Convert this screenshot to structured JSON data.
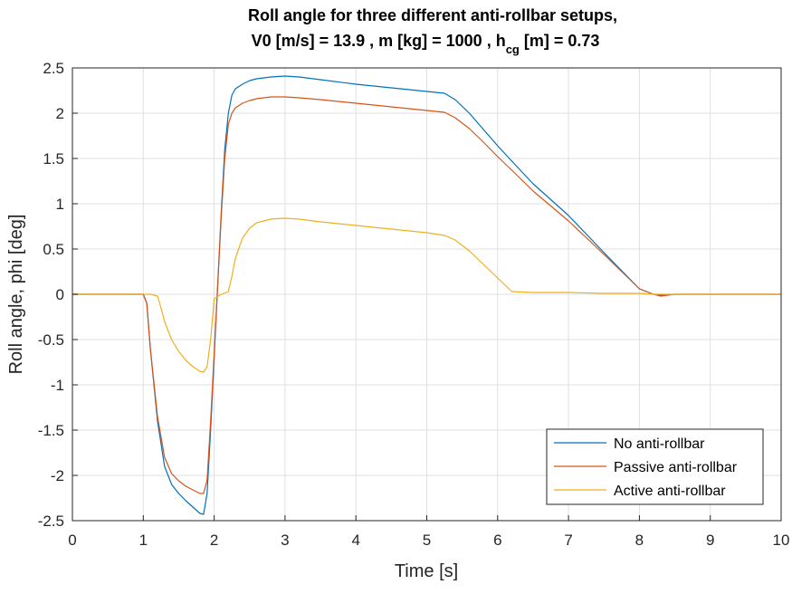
{
  "chart_data": {
    "type": "line",
    "title_line1": "Roll angle for three different anti-rollbar setups,",
    "title_line2_prefix": "V0 [m/s] = 13.9 , m [kg] = 1000 , h",
    "title_line2_subscript": "cg",
    "title_line2_suffix": " [m] = 0.73",
    "xlabel": "Time [s]",
    "ylabel": "Roll angle, phi [deg]",
    "xlim": [
      0,
      10
    ],
    "ylim": [
      -2.5,
      2.5
    ],
    "xticks": [
      0,
      1,
      2,
      3,
      4,
      5,
      6,
      7,
      8,
      9,
      10
    ],
    "yticks": [
      -2.5,
      -2,
      -1.5,
      -1,
      -0.5,
      0,
      0.5,
      1,
      1.5,
      2,
      2.5
    ],
    "xtick_labels": [
      "0",
      "1",
      "2",
      "3",
      "4",
      "5",
      "6",
      "7",
      "8",
      "9",
      "10"
    ],
    "ytick_labels": [
      "-2.5",
      "-2",
      "-1.5",
      "-1",
      "-0.5",
      "0",
      "0.5",
      "1",
      "1.5",
      "2",
      "2.5"
    ],
    "grid": true,
    "legend_position": "bottom-right",
    "series": [
      {
        "name": "No anti-rollbar",
        "color": "#0072BD",
        "x": [
          0,
          1.0,
          1.05,
          1.1,
          1.2,
          1.3,
          1.4,
          1.5,
          1.6,
          1.7,
          1.8,
          1.85,
          1.9,
          1.95,
          2.0,
          2.05,
          2.1,
          2.15,
          2.2,
          2.25,
          2.3,
          2.4,
          2.5,
          2.6,
          2.8,
          3.0,
          3.2,
          3.5,
          4.0,
          4.5,
          5.0,
          5.25,
          5.4,
          5.6,
          5.8,
          6.0,
          6.2,
          6.5,
          7.0,
          7.5,
          8.0,
          8.2,
          8.3,
          8.5,
          9.0,
          10.0
        ],
        "y": [
          0,
          0,
          -0.1,
          -0.6,
          -1.4,
          -1.9,
          -2.1,
          -2.2,
          -2.28,
          -2.35,
          -2.42,
          -2.43,
          -2.2,
          -1.5,
          -0.7,
          0.1,
          0.9,
          1.6,
          2.0,
          2.2,
          2.27,
          2.32,
          2.36,
          2.38,
          2.4,
          2.41,
          2.4,
          2.37,
          2.32,
          2.28,
          2.24,
          2.22,
          2.15,
          2.0,
          1.82,
          1.64,
          1.47,
          1.22,
          0.87,
          0.46,
          0.06,
          0.0,
          -0.01,
          0.0,
          0.0,
          0.0
        ]
      },
      {
        "name": "Passive anti-rollbar",
        "color": "#D95319",
        "x": [
          0,
          1.0,
          1.05,
          1.1,
          1.2,
          1.3,
          1.4,
          1.5,
          1.6,
          1.7,
          1.8,
          1.85,
          1.9,
          1.95,
          2.0,
          2.05,
          2.1,
          2.15,
          2.2,
          2.25,
          2.3,
          2.4,
          2.5,
          2.6,
          2.8,
          3.0,
          3.2,
          3.5,
          4.0,
          4.5,
          5.0,
          5.25,
          5.4,
          5.6,
          5.8,
          6.0,
          6.2,
          6.5,
          7.0,
          7.5,
          8.0,
          8.2,
          8.3,
          8.5,
          9.0,
          10.0
        ],
        "y": [
          0,
          0,
          -0.1,
          -0.6,
          -1.35,
          -1.8,
          -1.98,
          -2.06,
          -2.12,
          -2.16,
          -2.2,
          -2.2,
          -2.05,
          -1.4,
          -0.65,
          0.1,
          0.85,
          1.5,
          1.88,
          2.0,
          2.06,
          2.11,
          2.14,
          2.16,
          2.18,
          2.18,
          2.17,
          2.15,
          2.11,
          2.07,
          2.03,
          2.01,
          1.95,
          1.83,
          1.68,
          1.52,
          1.37,
          1.14,
          0.81,
          0.44,
          0.06,
          0.0,
          -0.02,
          0.0,
          0.0,
          0.0
        ]
      },
      {
        "name": "Active anti-rollbar",
        "color": "#EDB120",
        "x": [
          0,
          1.0,
          1.1,
          1.2,
          1.25,
          1.3,
          1.4,
          1.5,
          1.6,
          1.7,
          1.8,
          1.85,
          1.9,
          1.95,
          2.0,
          2.1,
          2.2,
          2.25,
          2.3,
          2.4,
          2.5,
          2.6,
          2.8,
          3.0,
          3.2,
          3.5,
          4.0,
          4.5,
          5.0,
          5.25,
          5.4,
          5.6,
          5.8,
          6.0,
          6.2,
          6.5,
          7.0,
          7.5,
          8.0,
          8.2,
          8.3,
          8.5,
          9.0,
          10.0
        ],
        "y": [
          0,
          0,
          0,
          -0.02,
          -0.15,
          -0.3,
          -0.5,
          -0.63,
          -0.73,
          -0.8,
          -0.85,
          -0.86,
          -0.8,
          -0.5,
          -0.05,
          0.0,
          0.03,
          0.2,
          0.4,
          0.62,
          0.73,
          0.79,
          0.83,
          0.84,
          0.83,
          0.8,
          0.76,
          0.72,
          0.68,
          0.65,
          0.6,
          0.48,
          0.33,
          0.18,
          0.03,
          0.02,
          0.02,
          0.01,
          0.01,
          0.0,
          0.0,
          0.0,
          0.0,
          0.0
        ]
      }
    ]
  }
}
